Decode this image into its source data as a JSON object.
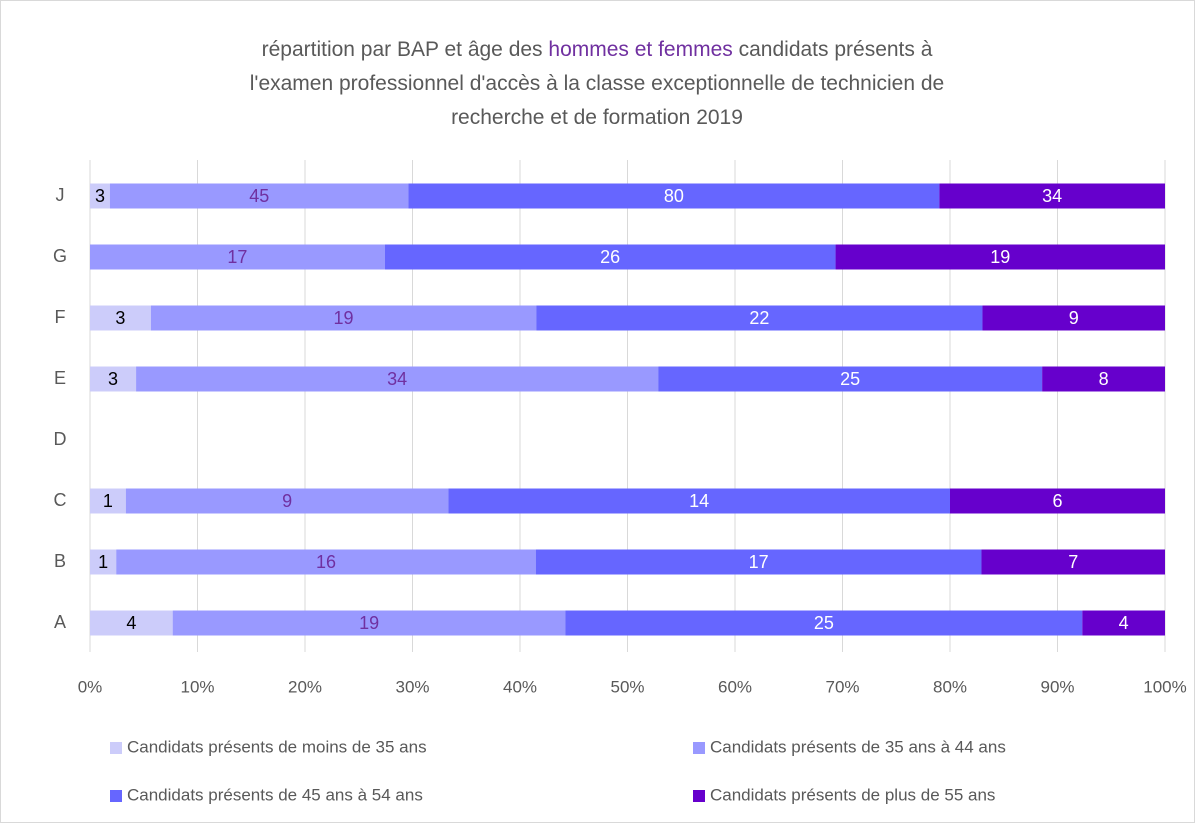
{
  "chart_data": {
    "type": "bar",
    "orientation": "horizontal",
    "stack": "percent",
    "title": [
      [
        {
          "text": "répartition par BAP et âge des ",
          "color": "#595959"
        },
        {
          "text": "hommes et femmes",
          "color": "#7030a0"
        },
        {
          "text": " candidats présents à",
          "color": "#595959"
        }
      ],
      [
        {
          "text": "l'examen professionnel d'accès à la classe exceptionnelle  de technicien  de",
          "color": "#595959"
        }
      ],
      [
        {
          "text": "recherche et de formation 2019",
          "color": "#595959"
        }
      ]
    ],
    "categories": [
      "A",
      "B",
      "C",
      "D",
      "E",
      "F",
      "G",
      "J"
    ],
    "series": [
      {
        "name": "Candidats présents de moins de 35 ans",
        "color": "#ccccfa",
        "label_color": "#000000",
        "values": [
          4,
          1,
          1,
          null,
          3,
          3,
          0,
          3
        ],
        "value_labels": [
          "4",
          "1",
          "1",
          null,
          "3",
          "3",
          "-",
          "3"
        ]
      },
      {
        "name": "Candidats présents de 35 ans à 44 ans",
        "color": "#9999ff",
        "label_color": "#7030a0",
        "values": [
          19,
          16,
          9,
          null,
          34,
          19,
          17,
          45
        ]
      },
      {
        "name": "Candidats présents de 45 ans à 54 ans",
        "color": "#6666ff",
        "label_color": "#ffffff",
        "values": [
          25,
          17,
          14,
          null,
          25,
          22,
          26,
          80
        ]
      },
      {
        "name": "Candidats présents de plus de 55 ans",
        "color": "#6600cc",
        "label_color": "#ffffff",
        "values": [
          4,
          7,
          6,
          null,
          8,
          9,
          19,
          34
        ]
      }
    ],
    "xlim": [
      0,
      100
    ],
    "xticks": [
      {
        "value": 0,
        "label": "0%"
      },
      {
        "value": 10,
        "label": "10%"
      },
      {
        "value": 20,
        "label": "20%"
      },
      {
        "value": 30,
        "label": "30%"
      },
      {
        "value": 40,
        "label": "40%"
      },
      {
        "value": 50,
        "label": "50%"
      },
      {
        "value": 60,
        "label": "60%"
      },
      {
        "value": 70,
        "label": "70%"
      },
      {
        "value": 80,
        "label": "80%"
      },
      {
        "value": 90,
        "label": "90%"
      },
      {
        "value": 100,
        "label": "100%"
      }
    ],
    "grid": true,
    "legend": "bottom"
  }
}
